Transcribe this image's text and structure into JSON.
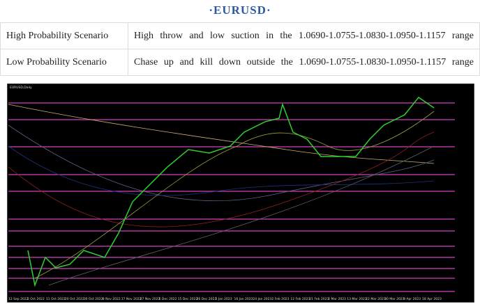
{
  "header": {
    "title": "·EURUSD·"
  },
  "table": {
    "rows": [
      [
        "High Probability Scenario",
        "High throw and low suction in the 1.0690-1.0755-1.0830-1.0950-1.1157 range"
      ],
      [
        "Low Probability Scenario",
        "Chase up and kill down outside the 1.0690-1.0755-1.0830-1.0950-1.1157 range"
      ]
    ]
  },
  "chart": {
    "caption": "EURUSD,Daily",
    "dates": [
      "12 Sep 2022",
      "2 Oct 2022",
      "11 Oct 2022",
      "20 Oct 2022",
      "30 Oct 2022",
      "8 Nov 2022",
      "17 Nov 2022",
      "27 Nov 2022",
      "6 Dec 2022",
      "15 Dec 2022",
      "26 Dec 2022",
      "5 Jan 2023",
      "16 Jan 2023",
      "24 Jan 2023",
      "2 Feb 2023",
      "12 Feb 2023",
      "21 Feb 2023",
      "2 Mar 2023",
      "13 Mar 2023",
      "22 Mar 2023",
      "30 Mar 2023",
      "9 Apr 2023",
      "18 Apr 2023"
    ]
  }
}
